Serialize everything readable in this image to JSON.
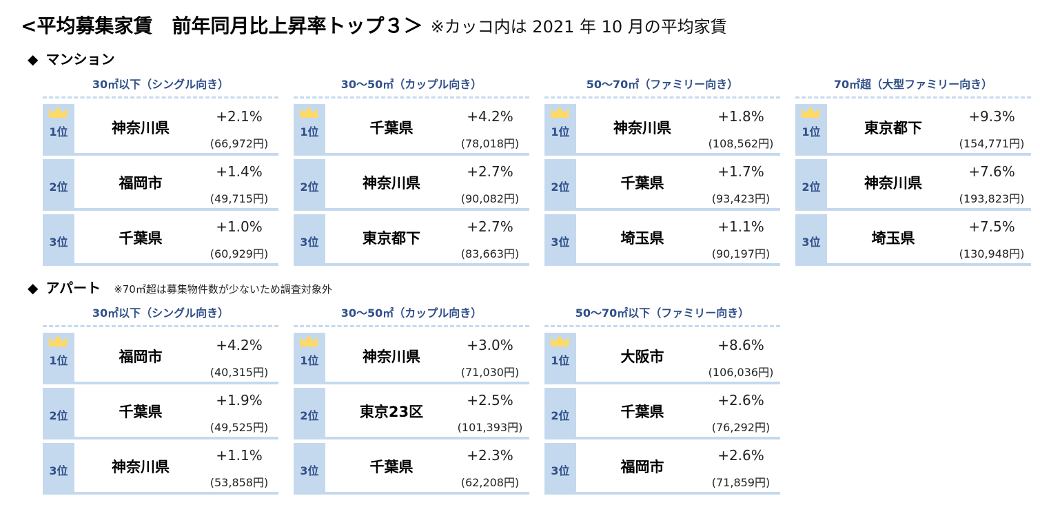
{
  "title": {
    "main": "<平均募集家賃　前年同月比上昇率トップ３＞",
    "note": "※カッコ内は 2021 年 10 月の平均家賃"
  },
  "colors": {
    "rank_bg": "#c5d9ee",
    "accent_text": "#2f4f8a",
    "crown": "#ffd966"
  },
  "sections": [
    {
      "label": "マンション",
      "note": "",
      "groups": [
        {
          "title": "30㎡以下（シングル向き）",
          "rows": [
            {
              "rank": "1位",
              "place": "神奈川県",
              "pct": "+2.1%",
              "rent": "(66,972円)"
            },
            {
              "rank": "2位",
              "place": "福岡市",
              "pct": "+1.4%",
              "rent": "(49,715円)"
            },
            {
              "rank": "3位",
              "place": "千葉県",
              "pct": "+1.0%",
              "rent": "(60,929円)"
            }
          ]
        },
        {
          "title": "30～50㎡（カップル向き）",
          "rows": [
            {
              "rank": "1位",
              "place": "千葉県",
              "pct": "+4.2%",
              "rent": "(78,018円)"
            },
            {
              "rank": "2位",
              "place": "神奈川県",
              "pct": "+2.7%",
              "rent": "(90,082円)"
            },
            {
              "rank": "3位",
              "place": "東京都下",
              "pct": "+2.7%",
              "rent": "(83,663円)"
            }
          ]
        },
        {
          "title": "50～70㎡（ファミリー向き）",
          "rows": [
            {
              "rank": "1位",
              "place": "神奈川県",
              "pct": "+1.8%",
              "rent": "(108,562円)"
            },
            {
              "rank": "2位",
              "place": "千葉県",
              "pct": "+1.7%",
              "rent": "(93,423円)"
            },
            {
              "rank": "3位",
              "place": "埼玉県",
              "pct": "+1.1%",
              "rent": "(90,197円)"
            }
          ]
        },
        {
          "title": "70㎡超（大型ファミリー向き）",
          "rows": [
            {
              "rank": "1位",
              "place": "東京都下",
              "pct": "+9.3%",
              "rent": "(154,771円)"
            },
            {
              "rank": "2位",
              "place": "神奈川県",
              "pct": "+7.6%",
              "rent": "(193,823円)"
            },
            {
              "rank": "3位",
              "place": "埼玉県",
              "pct": "+7.5%",
              "rent": "(130,948円)"
            }
          ]
        }
      ]
    },
    {
      "label": "アパート",
      "note": "※70㎡超は募集物件数が少ないため調査対象外",
      "groups": [
        {
          "title": "30㎡以下（シングル向き）",
          "rows": [
            {
              "rank": "1位",
              "place": "福岡市",
              "pct": "+4.2%",
              "rent": "(40,315円)"
            },
            {
              "rank": "2位",
              "place": "千葉県",
              "pct": "+1.9%",
              "rent": "(49,525円)"
            },
            {
              "rank": "3位",
              "place": "神奈川県",
              "pct": "+1.1%",
              "rent": "(53,858円)"
            }
          ]
        },
        {
          "title": "30～50㎡（カップル向き）",
          "rows": [
            {
              "rank": "1位",
              "place": "神奈川県",
              "pct": "+3.0%",
              "rent": "(71,030円)"
            },
            {
              "rank": "2位",
              "place": "東京23区",
              "pct": "+2.5%",
              "rent": "(101,393円)"
            },
            {
              "rank": "3位",
              "place": "千葉県",
              "pct": "+2.3%",
              "rent": "(62,208円)"
            }
          ]
        },
        {
          "title": "50～70㎡以下（ファミリー向き）",
          "rows": [
            {
              "rank": "1位",
              "place": "大阪市",
              "pct": "+8.6%",
              "rent": "(106,036円)"
            },
            {
              "rank": "2位",
              "place": "千葉県",
              "pct": "+2.6%",
              "rent": "(76,292円)"
            },
            {
              "rank": "3位",
              "place": "福岡市",
              "pct": "+2.6%",
              "rent": "(71,859円)"
            }
          ]
        }
      ]
    }
  ]
}
